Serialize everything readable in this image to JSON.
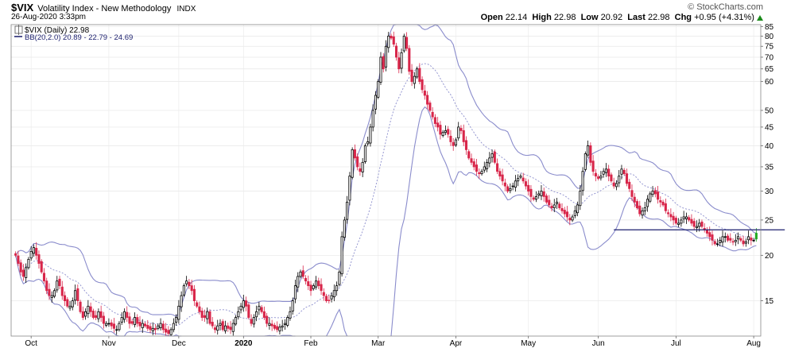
{
  "header": {
    "symbol": "$VIX",
    "name": "Volatility Index - New Methodology",
    "exchange": "INDX",
    "date": "26-Aug-2020 3:33pm",
    "brand": "© StockCharts.com",
    "open_label": "Open",
    "open": "22.14",
    "high_label": "High",
    "high": "22.98",
    "low_label": "Low",
    "low": "20.92",
    "last_label": "Last",
    "last": "22.98",
    "chg_label": "Chg",
    "chg": "+0.95 (+4.31%)"
  },
  "legend": {
    "price_entry": "$VIX (Daily) 22.98",
    "bb_entry": "BB(20,2.0) 20.89 - 22.79 - 24.69"
  },
  "colors": {
    "up": "#000000",
    "down": "#d8264a",
    "band": "#8a8ccc",
    "mid": "#8a8ccc",
    "support": "#1b1f6e",
    "last_bar": "#22aa22"
  },
  "chart_data": {
    "type": "candlestick",
    "title": "$VIX Volatility Index - New Methodology",
    "y_scale": "log",
    "ylim": [
      12,
      86
    ],
    "y_ticks": [
      15,
      20,
      25,
      30,
      35,
      40,
      45,
      50,
      60,
      65,
      70,
      75,
      80,
      85
    ],
    "x_tick_labels": [
      "Oct",
      "Nov",
      "Dec",
      "2020",
      "Feb",
      "Mar",
      "Apr",
      "May",
      "Jun",
      "Jul",
      "Aug"
    ],
    "x_tick_index": [
      6,
      36,
      63,
      88,
      114,
      140,
      170,
      198,
      225,
      255,
      285
    ],
    "close": [
      20.0,
      19.0,
      18.0,
      17.5,
      18.5,
      19.5,
      20.5,
      21.0,
      20.0,
      19.0,
      18.0,
      17.0,
      16.0,
      15.5,
      15.5,
      16.0,
      17.0,
      16.5,
      15.5,
      15.0,
      14.5,
      14.5,
      15.0,
      16.0,
      15.0,
      14.0,
      13.5,
      14.0,
      14.5,
      14.0,
      13.5,
      13.5,
      14.0,
      13.5,
      13.0,
      13.0,
      13.0,
      12.8,
      12.6,
      12.5,
      13.0,
      13.5,
      14.0,
      13.5,
      13.0,
      13.0,
      13.5,
      13.0,
      12.8,
      13.0,
      12.8,
      12.6,
      12.5,
      12.6,
      12.5,
      12.8,
      13.0,
      12.5,
      12.3,
      12.2,
      12.5,
      13.0,
      13.5,
      14.5,
      15.5,
      16.5,
      17.0,
      16.5,
      16.0,
      15.0,
      14.5,
      14.0,
      13.5,
      13.5,
      14.0,
      13.0,
      12.8,
      12.5,
      12.8,
      13.0,
      12.5,
      12.8,
      12.6,
      12.5,
      13.0,
      13.5,
      14.0,
      14.5,
      15.0,
      14.5,
      13.5,
      13.0,
      13.5,
      14.0,
      14.5,
      14.0,
      13.5,
      13.0,
      13.0,
      12.8,
      12.6,
      12.5,
      12.7,
      12.8,
      13.0,
      13.5,
      14.0,
      15.0,
      16.5,
      17.5,
      18.0,
      17.5,
      17.0,
      16.5,
      16.0,
      16.5,
      17.0,
      16.5,
      16.0,
      15.5,
      15.0,
      15.0,
      15.5,
      16.0,
      16.5,
      18.0,
      22.5,
      25.0,
      28.0,
      33.0,
      39.0,
      37.0,
      35.0,
      34.0,
      36.0,
      40.0,
      41.0,
      45.0,
      50.0,
      55.0,
      60.0,
      70.0,
      65.0,
      75.0,
      80.0,
      79.0,
      76.0,
      70.0,
      65.0,
      72.0,
      80.0,
      74.0,
      64.0,
      60.0,
      62.0,
      65.0,
      60.0,
      57.0,
      55.0,
      52.0,
      50.0,
      48.0,
      46.0,
      45.0,
      43.0,
      43.5,
      44.0,
      43.0,
      41.0,
      40.0,
      41.5,
      45.0,
      44.0,
      41.0,
      39.0,
      37.0,
      36.0,
      35.0,
      34.0,
      33.5,
      34.0,
      35.0,
      36.0,
      37.0,
      38.0,
      36.0,
      34.0,
      33.0,
      32.0,
      31.0,
      30.0,
      30.5,
      31.0,
      32.0,
      32.5,
      33.0,
      32.0,
      31.0,
      30.0,
      29.0,
      28.5,
      29.0,
      29.5,
      30.0,
      29.0,
      28.0,
      27.5,
      27.0,
      27.5,
      28.0,
      27.0,
      26.5,
      26.0,
      25.5,
      25.0,
      25.5,
      26.5,
      27.5,
      30.0,
      34.0,
      38.0,
      40.0,
      36.0,
      34.0,
      33.0,
      32.5,
      33.0,
      34.0,
      34.5,
      33.0,
      32.0,
      31.0,
      31.5,
      33.0,
      34.5,
      33.5,
      31.5,
      30.5,
      29.0,
      28.0,
      27.0,
      26.0,
      26.5,
      27.0,
      28.5,
      29.5,
      30.0,
      29.5,
      28.5,
      28.0,
      27.5,
      26.5,
      26.0,
      25.5,
      25.0,
      24.5,
      24.5,
      25.0,
      25.5,
      25.5,
      25.0,
      24.5,
      24.0,
      24.0,
      24.5,
      24.0,
      23.5,
      23.0,
      22.5,
      22.0,
      21.5,
      21.5,
      22.0,
      22.5,
      22.5,
      22.0,
      22.0,
      21.8,
      22.0,
      22.5,
      22.0,
      21.5,
      21.8,
      22.5,
      22.0,
      22.0,
      23.0
    ],
    "bb_period": 20,
    "bb_stddev": 2.0,
    "last_bar_value": 22.98,
    "bb_last": {
      "lower": 20.89,
      "middle": 22.79,
      "upper": 24.69
    },
    "support_level": 23.5,
    "support_range_index": [
      231,
      297
    ]
  }
}
